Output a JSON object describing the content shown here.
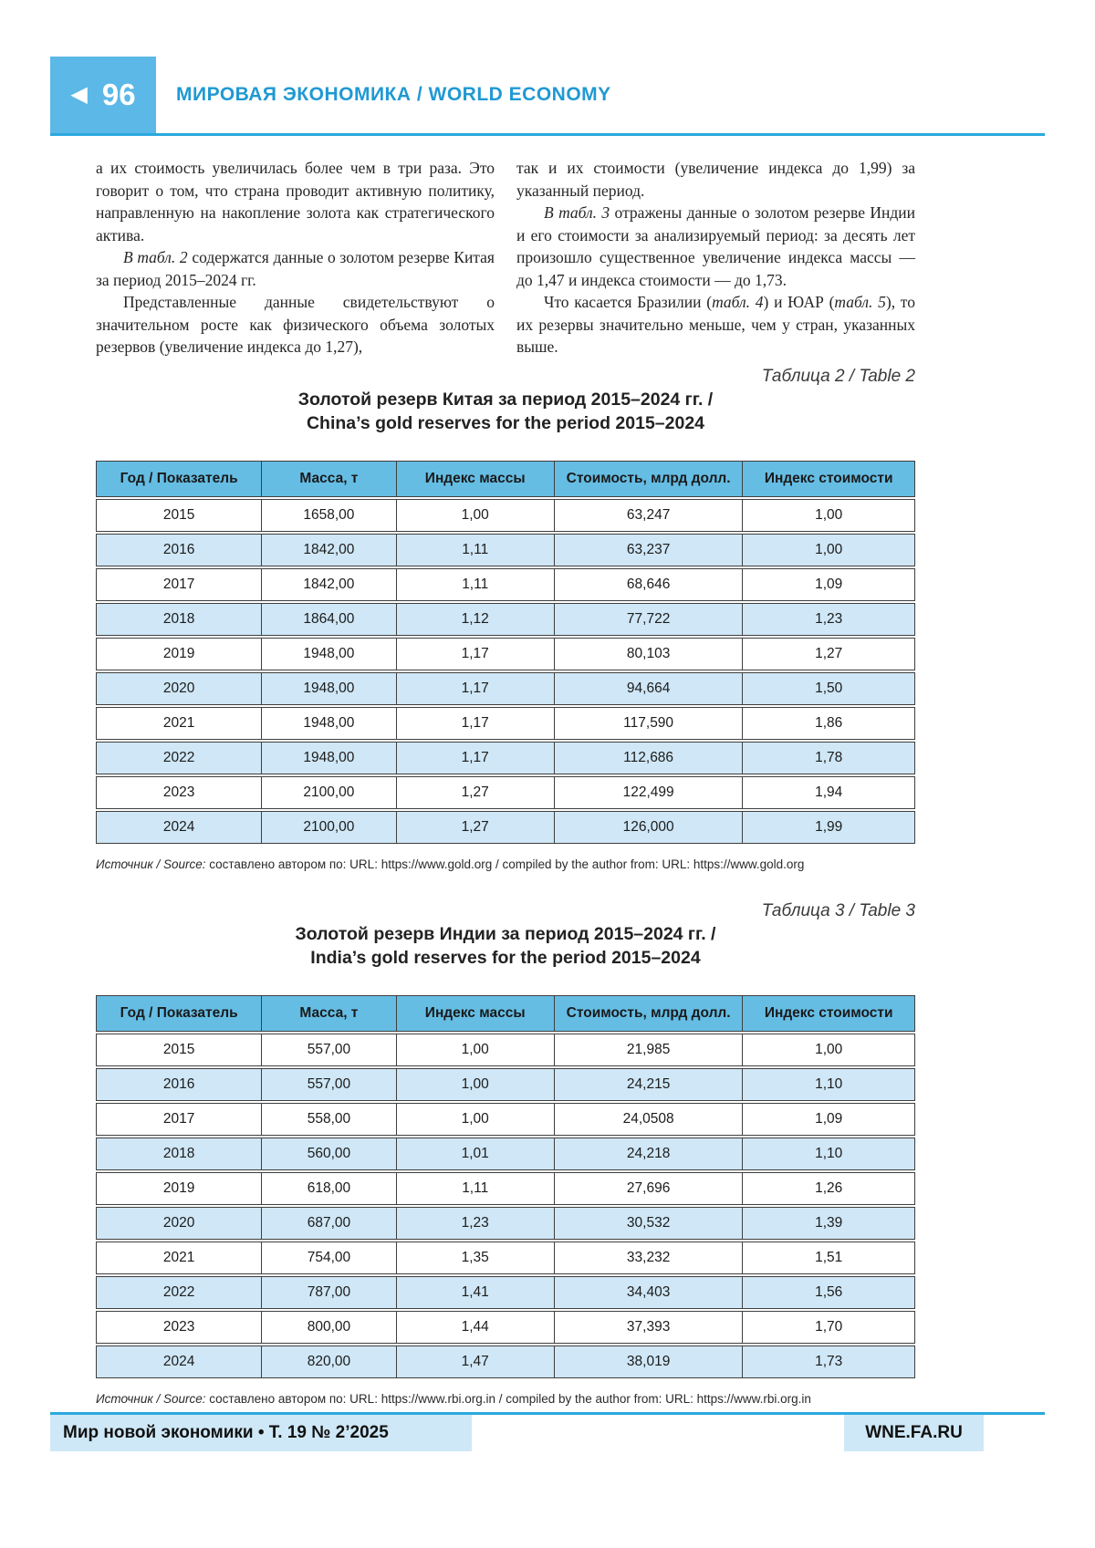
{
  "header": {
    "page_number": "96",
    "section_title": "МИРОВАЯ ЭКОНОМИКА / WORLD ECONOMY"
  },
  "body": {
    "left_column": [
      {
        "indent": false,
        "runs": [
          {
            "t": "а их стоимость увеличилась более чем в три раза. Это говорит о том, что страна проводит активную политику, направленную на накопление золота как стратегического актива.",
            "i": false
          }
        ]
      },
      {
        "indent": true,
        "runs": [
          {
            "t": "В табл. 2",
            "i": true
          },
          {
            "t": " содержатся данные о золотом резерве Китая за период 2015–2024 гг.",
            "i": false
          }
        ]
      },
      {
        "indent": true,
        "runs": [
          {
            "t": "Представленные данные свидетельствуют о значительном росте как физического объема золотых резервов (увеличение индекса до 1,27),",
            "i": false
          }
        ]
      }
    ],
    "right_column": [
      {
        "indent": false,
        "runs": [
          {
            "t": "так и их стоимости (увеличение индекса до 1,99) за указанный период.",
            "i": false
          }
        ]
      },
      {
        "indent": true,
        "runs": [
          {
            "t": "В табл. 3",
            "i": true
          },
          {
            "t": " отражены данные о золотом резерве Индии и его стоимости за анализируемый период: за десять лет произошло существенное увеличение индекса массы — до 1,47 и индекса стоимости — до 1,73.",
            "i": false
          }
        ]
      },
      {
        "indent": true,
        "runs": [
          {
            "t": "Что касается Бразилии (",
            "i": false
          },
          {
            "t": "табл. 4",
            "i": true
          },
          {
            "t": ") и ЮАР (",
            "i": false
          },
          {
            "t": "табл. 5",
            "i": true
          },
          {
            "t": "), то их резервы значительно меньше, чем у стран, указанных выше.",
            "i": false
          }
        ]
      }
    ]
  },
  "tables": [
    {
      "caption": "Таблица 2 / Table 2",
      "title_ru": "Золотой резерв Китая за период 2015–2024 гг. /",
      "title_en": "China’s gold reserves for the period 2015–2024",
      "headers": [
        "Год / Показатель",
        "Масса, т",
        "Индекс массы",
        "Стоимость, млрд долл.",
        "Индекс стоимости"
      ],
      "rows": [
        [
          "2015",
          "1658,00",
          "1,00",
          "63,247",
          "1,00"
        ],
        [
          "2016",
          "1842,00",
          "1,11",
          "63,237",
          "1,00"
        ],
        [
          "2017",
          "1842,00",
          "1,11",
          "68,646",
          "1,09"
        ],
        [
          "2018",
          "1864,00",
          "1,12",
          "77,722",
          "1,23"
        ],
        [
          "2019",
          "1948,00",
          "1,17",
          "80,103",
          "1,27"
        ],
        [
          "2020",
          "1948,00",
          "1,17",
          "94,664",
          "1,50"
        ],
        [
          "2021",
          "1948,00",
          "1,17",
          "117,590",
          "1,86"
        ],
        [
          "2022",
          "1948,00",
          "1,17",
          "112,686",
          "1,78"
        ],
        [
          "2023",
          "2100,00",
          "1,27",
          "122,499",
          "1,94"
        ],
        [
          "2024",
          "2100,00",
          "1,27",
          "126,000",
          "1,99"
        ]
      ],
      "source_runs": [
        {
          "t": "Источник / Source:",
          "i": true
        },
        {
          "t": " составлено автором по: URL: https://www.gold.org / compiled by the author from: URL: https://www.gold.org",
          "i": false
        }
      ]
    },
    {
      "caption": "Таблица 3 / Table 3",
      "title_ru": "Золотой резерв Индии за период 2015–2024 гг. /",
      "title_en": "India’s gold reserves for the period 2015–2024",
      "headers": [
        "Год / Показатель",
        "Масса, т",
        "Индекс массы",
        "Стоимость, млрд долл.",
        "Индекс стоимости"
      ],
      "rows": [
        [
          "2015",
          "557,00",
          "1,00",
          "21,985",
          "1,00"
        ],
        [
          "2016",
          "557,00",
          "1,00",
          "24,215",
          "1,10"
        ],
        [
          "2017",
          "558,00",
          "1,00",
          "24,0508",
          "1,09"
        ],
        [
          "2018",
          "560,00",
          "1,01",
          "24,218",
          "1,10"
        ],
        [
          "2019",
          "618,00",
          "1,11",
          "27,696",
          "1,26"
        ],
        [
          "2020",
          "687,00",
          "1,23",
          "30,532",
          "1,39"
        ],
        [
          "2021",
          "754,00",
          "1,35",
          "33,232",
          "1,51"
        ],
        [
          "2022",
          "787,00",
          "1,41",
          "34,403",
          "1,56"
        ],
        [
          "2023",
          "800,00",
          "1,44",
          "37,393",
          "1,70"
        ],
        [
          "2024",
          "820,00",
          "1,47",
          "38,019",
          "1,73"
        ]
      ],
      "source_runs": [
        {
          "t": "Источник / Source:",
          "i": true
        },
        {
          "t": " составлено автором по: URL: https://www.rbi.org.in / compiled by the author from: URL: https://www.rbi.org.in",
          "i": false
        }
      ]
    }
  ],
  "footer": {
    "journal_line": "Мир новой экономики • Т. 19 № 2’2025",
    "site": "WNE.FA.RU"
  },
  "colors": {
    "accent_blue": "#2aa9de",
    "box_blue": "#5cb8e6",
    "title_blue": "#2099d3",
    "table_header_blue": "#65bde4",
    "row_alt_blue": "#cfe7f6",
    "footer_box_blue": "#cfe8f7"
  }
}
